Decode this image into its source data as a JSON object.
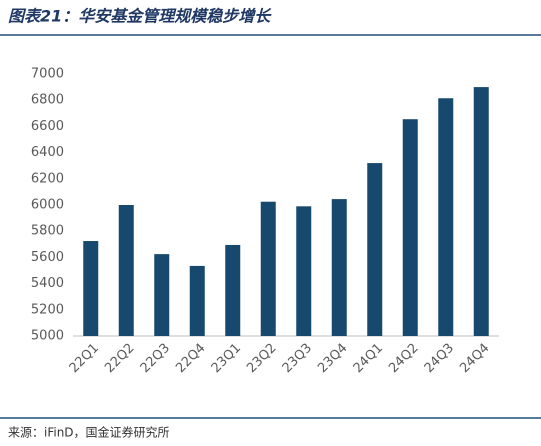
{
  "chart_data": {
    "type": "bar",
    "title": "图表21：华安基金管理规模稳步增长",
    "source": "来源：iFinD，国金证券研究所",
    "categories": [
      "22Q1",
      "22Q2",
      "22Q3",
      "22Q4",
      "23Q1",
      "23Q2",
      "23Q3",
      "23Q4",
      "24Q1",
      "24Q2",
      "24Q3",
      "24Q4"
    ],
    "values": [
      5725,
      6000,
      5625,
      5535,
      5695,
      6025,
      5990,
      6045,
      6320,
      6655,
      6815,
      6900
    ],
    "color": "#17496e",
    "ylim": [
      5000,
      7000
    ],
    "yticks": [
      5000,
      5200,
      5400,
      5600,
      5800,
      6000,
      6200,
      6400,
      6600,
      6800,
      7000
    ],
    "grid": false
  }
}
